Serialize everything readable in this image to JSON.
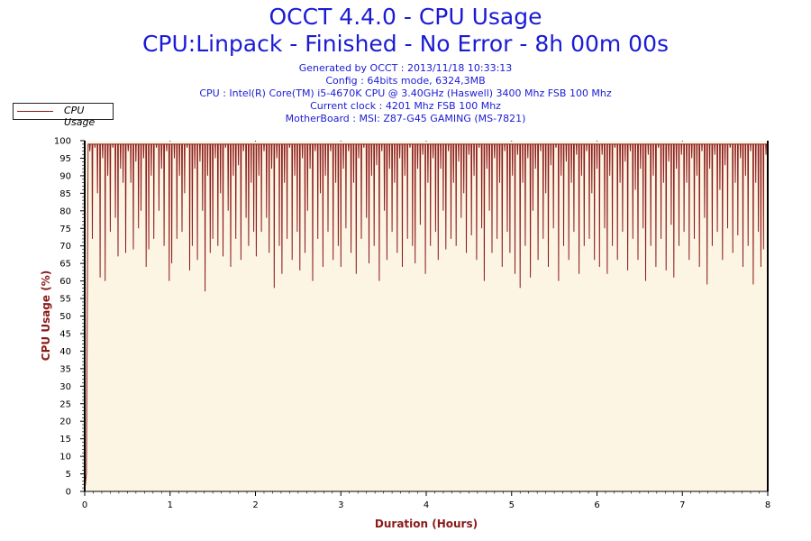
{
  "chart_data": {
    "type": "line",
    "title": "OCCT 4.4.0 - CPU Usage",
    "subtitle": "CPU:Linpack - Finished - No Error - 8h 00m 00s",
    "info_lines": [
      "Generated by OCCT : 2013/11/18 10:33:13",
      "Config : 64bits mode, 6324,3MB",
      "CPU : Intel(R) Core(TM) i5-4670K CPU @ 3.40GHz (Haswell) 3400 Mhz FSB 100 Mhz",
      "Current clock : 4201 Mhz FSB 100 Mhz",
      "MotherBoard : MSI: Z87-G45 GAMING (MS-7821)"
    ],
    "xlabel": "Duration (Hours)",
    "ylabel": "CPU Usage (%)",
    "xlim": [
      0,
      8
    ],
    "ylim": [
      0,
      100
    ],
    "x_ticks": [
      "0",
      "1",
      "2",
      "3",
      "4",
      "5",
      "6",
      "7",
      "8"
    ],
    "y_ticks": [
      "0",
      "5",
      "10",
      "15",
      "20",
      "25",
      "30",
      "35",
      "40",
      "45",
      "50",
      "55",
      "60",
      "65",
      "70",
      "75",
      "80",
      "85",
      "90",
      "95",
      "100"
    ],
    "legend": "top-left",
    "grid": "vertical dotted",
    "series": [
      {
        "name": "CPU Usage",
        "color": "#8b1a1a",
        "baseline": 99,
        "points": [
          [
            0.0,
            0
          ],
          [
            0.02,
            5
          ],
          [
            0.04,
            99
          ],
          [
            0.06,
            97
          ],
          [
            0.09,
            72
          ],
          [
            0.12,
            98
          ],
          [
            0.15,
            85
          ],
          [
            0.18,
            61
          ],
          [
            0.21,
            95
          ],
          [
            0.24,
            60
          ],
          [
            0.27,
            90
          ],
          [
            0.3,
            74
          ],
          [
            0.33,
            98
          ],
          [
            0.36,
            78
          ],
          [
            0.39,
            67
          ],
          [
            0.42,
            92
          ],
          [
            0.45,
            88
          ],
          [
            0.48,
            68
          ],
          [
            0.51,
            97
          ],
          [
            0.54,
            88
          ],
          [
            0.57,
            69
          ],
          [
            0.6,
            94
          ],
          [
            0.63,
            75
          ],
          [
            0.66,
            80
          ],
          [
            0.69,
            95
          ],
          [
            0.72,
            64
          ],
          [
            0.75,
            69
          ],
          [
            0.78,
            90
          ],
          [
            0.81,
            72
          ],
          [
            0.84,
            98
          ],
          [
            0.87,
            80
          ],
          [
            0.9,
            92
          ],
          [
            0.93,
            70
          ],
          [
            0.96,
            97
          ],
          [
            0.99,
            60
          ],
          [
            1.02,
            65
          ],
          [
            1.05,
            95
          ],
          [
            1.08,
            72
          ],
          [
            1.11,
            90
          ],
          [
            1.14,
            74
          ],
          [
            1.17,
            85
          ],
          [
            1.2,
            98
          ],
          [
            1.23,
            63
          ],
          [
            1.26,
            70
          ],
          [
            1.29,
            92
          ],
          [
            1.32,
            66
          ],
          [
            1.35,
            94
          ],
          [
            1.38,
            80
          ],
          [
            1.41,
            57
          ],
          [
            1.44,
            90
          ],
          [
            1.47,
            68
          ],
          [
            1.5,
            72
          ],
          [
            1.53,
            95
          ],
          [
            1.56,
            70
          ],
          [
            1.59,
            85
          ],
          [
            1.62,
            67
          ],
          [
            1.65,
            98
          ],
          [
            1.68,
            80
          ],
          [
            1.71,
            64
          ],
          [
            1.74,
            90
          ],
          [
            1.77,
            72
          ],
          [
            1.8,
            93
          ],
          [
            1.83,
            66
          ],
          [
            1.86,
            97
          ],
          [
            1.89,
            78
          ],
          [
            1.92,
            70
          ],
          [
            1.95,
            88
          ],
          [
            1.98,
            74
          ],
          [
            2.01,
            67
          ],
          [
            2.04,
            90
          ],
          [
            2.07,
            74
          ],
          [
            2.1,
            97
          ],
          [
            2.13,
            78
          ],
          [
            2.16,
            68
          ],
          [
            2.19,
            92
          ],
          [
            2.22,
            58
          ],
          [
            2.25,
            95
          ],
          [
            2.28,
            70
          ],
          [
            2.31,
            62
          ],
          [
            2.34,
            88
          ],
          [
            2.37,
            72
          ],
          [
            2.4,
            98
          ],
          [
            2.43,
            66
          ],
          [
            2.46,
            90
          ],
          [
            2.49,
            74
          ],
          [
            2.52,
            63
          ],
          [
            2.55,
            95
          ],
          [
            2.58,
            68
          ],
          [
            2.61,
            80
          ],
          [
            2.64,
            92
          ],
          [
            2.67,
            60
          ],
          [
            2.7,
            97
          ],
          [
            2.73,
            72
          ],
          [
            2.76,
            85
          ],
          [
            2.79,
            64
          ],
          [
            2.82,
            90
          ],
          [
            2.85,
            74
          ],
          [
            2.88,
            97
          ],
          [
            2.91,
            66
          ],
          [
            2.94,
            88
          ],
          [
            2.97,
            70
          ],
          [
            3.0,
            64
          ],
          [
            3.03,
            92
          ],
          [
            3.06,
            75
          ],
          [
            3.09,
            97
          ],
          [
            3.12,
            68
          ],
          [
            3.15,
            88
          ],
          [
            3.18,
            62
          ],
          [
            3.21,
            95
          ],
          [
            3.24,
            72
          ],
          [
            3.27,
            98
          ],
          [
            3.3,
            78
          ],
          [
            3.33,
            65
          ],
          [
            3.36,
            90
          ],
          [
            3.39,
            70
          ],
          [
            3.42,
            93
          ],
          [
            3.45,
            60
          ],
          [
            3.48,
            97
          ],
          [
            3.51,
            80
          ],
          [
            3.54,
            66
          ],
          [
            3.57,
            92
          ],
          [
            3.6,
            74
          ],
          [
            3.63,
            88
          ],
          [
            3.66,
            68
          ],
          [
            3.69,
            95
          ],
          [
            3.72,
            64
          ],
          [
            3.75,
            90
          ],
          [
            3.78,
            72
          ],
          [
            3.81,
            98
          ],
          [
            3.84,
            70
          ],
          [
            3.87,
            65
          ],
          [
            3.9,
            92
          ],
          [
            3.93,
            76
          ],
          [
            3.96,
            96
          ],
          [
            3.99,
            62
          ],
          [
            4.02,
            88
          ],
          [
            4.05,
            70
          ],
          [
            4.08,
            95
          ],
          [
            4.11,
            74
          ],
          [
            4.14,
            66
          ],
          [
            4.17,
            92
          ],
          [
            4.2,
            80
          ],
          [
            4.23,
            69
          ],
          [
            4.26,
            97
          ],
          [
            4.29,
            72
          ],
          [
            4.32,
            88
          ],
          [
            4.35,
            70
          ],
          [
            4.38,
            94
          ],
          [
            4.41,
            78
          ],
          [
            4.44,
            85
          ],
          [
            4.47,
            68
          ],
          [
            4.5,
            96
          ],
          [
            4.53,
            73
          ],
          [
            4.56,
            90
          ],
          [
            4.59,
            66
          ],
          [
            4.62,
            98
          ],
          [
            4.65,
            75
          ],
          [
            4.68,
            60
          ],
          [
            4.71,
            92
          ],
          [
            4.74,
            80
          ],
          [
            4.77,
            68
          ],
          [
            4.8,
            95
          ],
          [
            4.83,
            72
          ],
          [
            4.86,
            88
          ],
          [
            4.89,
            64
          ],
          [
            4.92,
            97
          ],
          [
            4.95,
            74
          ],
          [
            4.98,
            68
          ],
          [
            5.01,
            90
          ],
          [
            5.04,
            62
          ],
          [
            5.07,
            96
          ],
          [
            5.1,
            58
          ],
          [
            5.13,
            88
          ],
          [
            5.16,
            70
          ],
          [
            5.19,
            95
          ],
          [
            5.22,
            61
          ],
          [
            5.25,
            80
          ],
          [
            5.28,
            92
          ],
          [
            5.31,
            66
          ],
          [
            5.34,
            97
          ],
          [
            5.37,
            72
          ],
          [
            5.4,
            85
          ],
          [
            5.43,
            64
          ],
          [
            5.46,
            93
          ],
          [
            5.49,
            75
          ],
          [
            5.52,
            98
          ],
          [
            5.55,
            60
          ],
          [
            5.58,
            90
          ],
          [
            5.61,
            70
          ],
          [
            5.64,
            94
          ],
          [
            5.67,
            66
          ],
          [
            5.7,
            88
          ],
          [
            5.73,
            74
          ],
          [
            5.76,
            96
          ],
          [
            5.79,
            62
          ],
          [
            5.82,
            90
          ],
          [
            5.85,
            70
          ],
          [
            5.88,
            97
          ],
          [
            5.91,
            72
          ],
          [
            5.94,
            85
          ],
          [
            5.97,
            66
          ],
          [
            6.0,
            92
          ],
          [
            6.03,
            64
          ],
          [
            6.06,
            96
          ],
          [
            6.09,
            75
          ],
          [
            6.12,
            62
          ],
          [
            6.15,
            90
          ],
          [
            6.18,
            70
          ],
          [
            6.21,
            98
          ],
          [
            6.24,
            66
          ],
          [
            6.27,
            88
          ],
          [
            6.3,
            74
          ],
          [
            6.33,
            94
          ],
          [
            6.36,
            63
          ],
          [
            6.39,
            97
          ],
          [
            6.42,
            72
          ],
          [
            6.45,
            86
          ],
          [
            6.48,
            66
          ],
          [
            6.51,
            92
          ],
          [
            6.54,
            75
          ],
          [
            6.57,
            60
          ],
          [
            6.6,
            96
          ],
          [
            6.63,
            70
          ],
          [
            6.66,
            90
          ],
          [
            6.69,
            64
          ],
          [
            6.72,
            98
          ],
          [
            6.75,
            72
          ],
          [
            6.78,
            88
          ],
          [
            6.81,
            63
          ],
          [
            6.84,
            94
          ],
          [
            6.87,
            76
          ],
          [
            6.9,
            61
          ],
          [
            6.93,
            92
          ],
          [
            6.96,
            70
          ],
          [
            6.99,
            96
          ],
          [
            7.02,
            74
          ],
          [
            7.05,
            88
          ],
          [
            7.08,
            66
          ],
          [
            7.11,
            95
          ],
          [
            7.14,
            72
          ],
          [
            7.17,
            90
          ],
          [
            7.2,
            64
          ],
          [
            7.23,
            97
          ],
          [
            7.26,
            78
          ],
          [
            7.29,
            59
          ],
          [
            7.32,
            92
          ],
          [
            7.35,
            70
          ],
          [
            7.38,
            96
          ],
          [
            7.41,
            74
          ],
          [
            7.44,
            86
          ],
          [
            7.47,
            66
          ],
          [
            7.5,
            93
          ],
          [
            7.53,
            75
          ],
          [
            7.56,
            98
          ],
          [
            7.59,
            68
          ],
          [
            7.62,
            88
          ],
          [
            7.65,
            73
          ],
          [
            7.68,
            95
          ],
          [
            7.71,
            64
          ],
          [
            7.74,
            90
          ],
          [
            7.77,
            70
          ],
          [
            7.8,
            97
          ],
          [
            7.83,
            59
          ],
          [
            7.86,
            88
          ],
          [
            7.89,
            74
          ],
          [
            7.92,
            64
          ],
          [
            7.95,
            69
          ],
          [
            7.98,
            96
          ]
        ]
      }
    ]
  }
}
